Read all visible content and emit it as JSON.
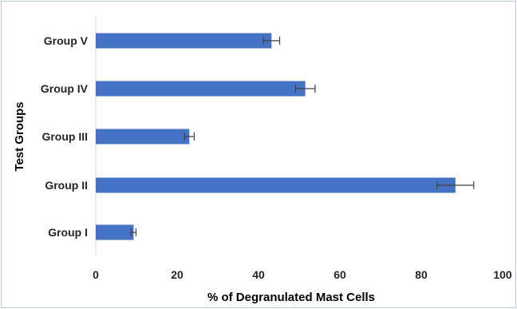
{
  "chart_data": {
    "type": "bar",
    "orientation": "horizontal",
    "title": "",
    "xlabel": "% of Degranulated Mast Cells",
    "ylabel": "Test Groups",
    "categories": [
      "Group I",
      "Group II",
      "Group III",
      "Group IV",
      "Group V"
    ],
    "values": [
      9.3,
      88.4,
      23.0,
      51.5,
      43.2
    ],
    "errors": [
      0.6,
      4.5,
      1.2,
      2.4,
      2.0
    ],
    "xlim": [
      0,
      100
    ],
    "xticks": [
      0,
      20,
      40,
      60,
      80,
      100
    ],
    "grid": false,
    "legend": "none",
    "colors": {
      "bar": "#4472c4",
      "error_bar": "#404040",
      "axis": "#d9d9d9",
      "border": "#b9c8dc"
    }
  }
}
